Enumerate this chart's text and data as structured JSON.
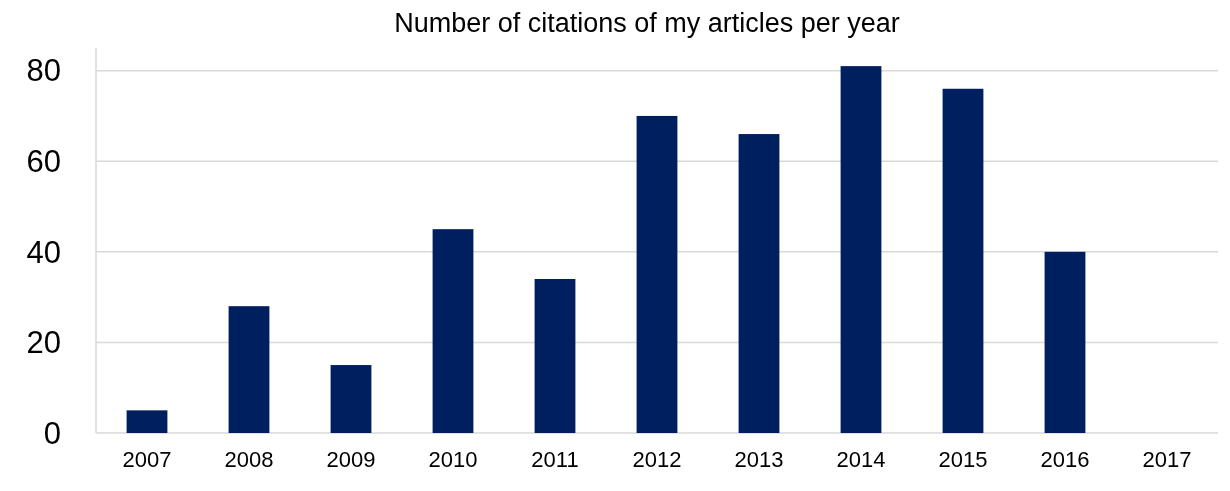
{
  "chart_data": {
    "type": "bar",
    "title": "Number of citations of my articles per year",
    "categories": [
      "2007",
      "2008",
      "2009",
      "2010",
      "2011",
      "2012",
      "2013",
      "2014",
      "2015",
      "2016",
      "2017"
    ],
    "values": [
      5,
      28,
      15,
      45,
      34,
      70,
      66,
      81,
      76,
      40,
      0
    ],
    "color": "#001f5f",
    "ylim": [
      0,
      85
    ],
    "yticks": [
      0,
      20,
      40,
      60,
      80
    ],
    "grid": "y"
  }
}
